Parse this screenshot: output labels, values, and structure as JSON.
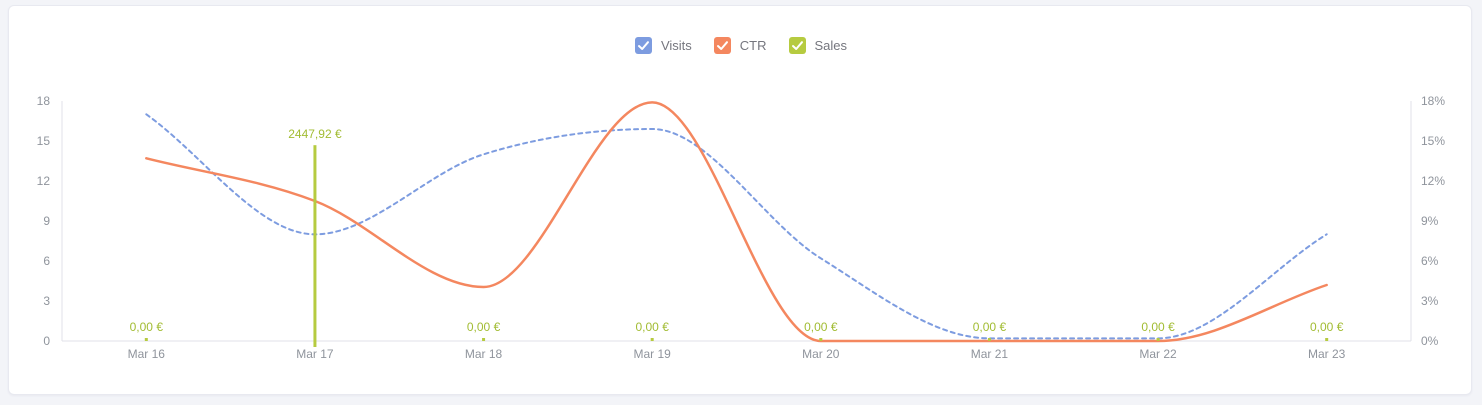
{
  "colors": {
    "page_background": "#f3f4f8",
    "card_background": "#ffffff",
    "card_border": "#e8e9f0",
    "axis_line": "#e1e2e8",
    "axis_text": "#8f949c",
    "visits": "#7d9ce0",
    "ctr": "#f4875f",
    "sales_bar": "#b6cb40",
    "sales_label_text": "#a2bc33",
    "legend_text": "#75767e",
    "checkmark": "#ffffff"
  },
  "legend": {
    "items": [
      {
        "label": "Visits",
        "color": "#7d9ce0",
        "checked": true
      },
      {
        "label": "CTR",
        "color": "#f4875f",
        "checked": true
      },
      {
        "label": "Sales",
        "color": "#b6cb40",
        "checked": true
      }
    ]
  },
  "chart_data": {
    "type": "line",
    "categories": [
      "Mar 16",
      "Mar 17",
      "Mar 18",
      "Mar 19",
      "Mar 20",
      "Mar 21",
      "Mar 22",
      "Mar 23"
    ],
    "series": [
      {
        "name": "Visits",
        "type": "line",
        "line_style": "dashed",
        "color": "#7d9ce0",
        "axis": "left",
        "values": [
          17,
          8,
          14,
          15.9,
          6.2,
          0.2,
          0.2,
          8
        ]
      },
      {
        "name": "CTR",
        "type": "line",
        "line_style": "solid",
        "color": "#f4875f",
        "axis": "right",
        "values": [
          13.7,
          10.5,
          4.05,
          17.9,
          0,
          0,
          0,
          4.2
        ]
      },
      {
        "name": "Sales",
        "type": "bar",
        "color": "#b6cb40",
        "axis": "hidden",
        "hidden_axis_max": 3000,
        "values": [
          0,
          2447.92,
          0,
          0,
          0,
          0,
          0,
          0
        ],
        "labels": [
          "0,00 €",
          "2447,92 €",
          "0,00 €",
          "0,00 €",
          "0,00 €",
          "0,00 €",
          "0,00 €",
          "0,00 €"
        ]
      }
    ],
    "left_axis": {
      "min": 0,
      "max": 18,
      "ticks": [
        "0",
        "3",
        "6",
        "9",
        "12",
        "15",
        "18"
      ]
    },
    "right_axis": {
      "min": 0,
      "max": 18,
      "ticks": [
        "0%",
        "3%",
        "6%",
        "9%",
        "12%",
        "15%",
        "18%"
      ]
    },
    "title": "",
    "grid": false,
    "legend_position": "top-center"
  }
}
